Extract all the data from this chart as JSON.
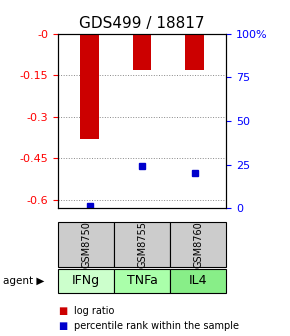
{
  "title": "GDS499 / 18817",
  "samples": [
    "GSM8750",
    "GSM8755",
    "GSM8760"
  ],
  "agents": [
    "IFNg",
    "TNFa",
    "IL4"
  ],
  "log_ratios": [
    -0.38,
    -0.13,
    -0.13
  ],
  "percentile_ranks": [
    1.5,
    24.0,
    20.0
  ],
  "left_yticks": [
    0,
    -0.15,
    -0.3,
    -0.45,
    -0.6
  ],
  "left_ylabels": [
    "-0",
    "-0.15",
    "-0.3",
    "-0.45",
    "-0.6"
  ],
  "right_yticks": [
    0,
    25,
    50,
    75,
    100
  ],
  "right_ylabels": [
    "0",
    "25",
    "50",
    "75",
    "100%"
  ],
  "ymin": -0.63,
  "ymax": 0.0,
  "bar_color": "#cc0000",
  "dot_color": "#0000cc",
  "agent_colors": [
    "#ccffcc",
    "#aaffaa",
    "#88ee88"
  ],
  "sample_box_color": "#cccccc",
  "grid_color": "#888888",
  "title_fontsize": 11,
  "tick_fontsize": 8,
  "agent_fontsize": 9,
  "sample_fontsize": 7,
  "legend_fontsize": 7,
  "bar_width": 0.35
}
